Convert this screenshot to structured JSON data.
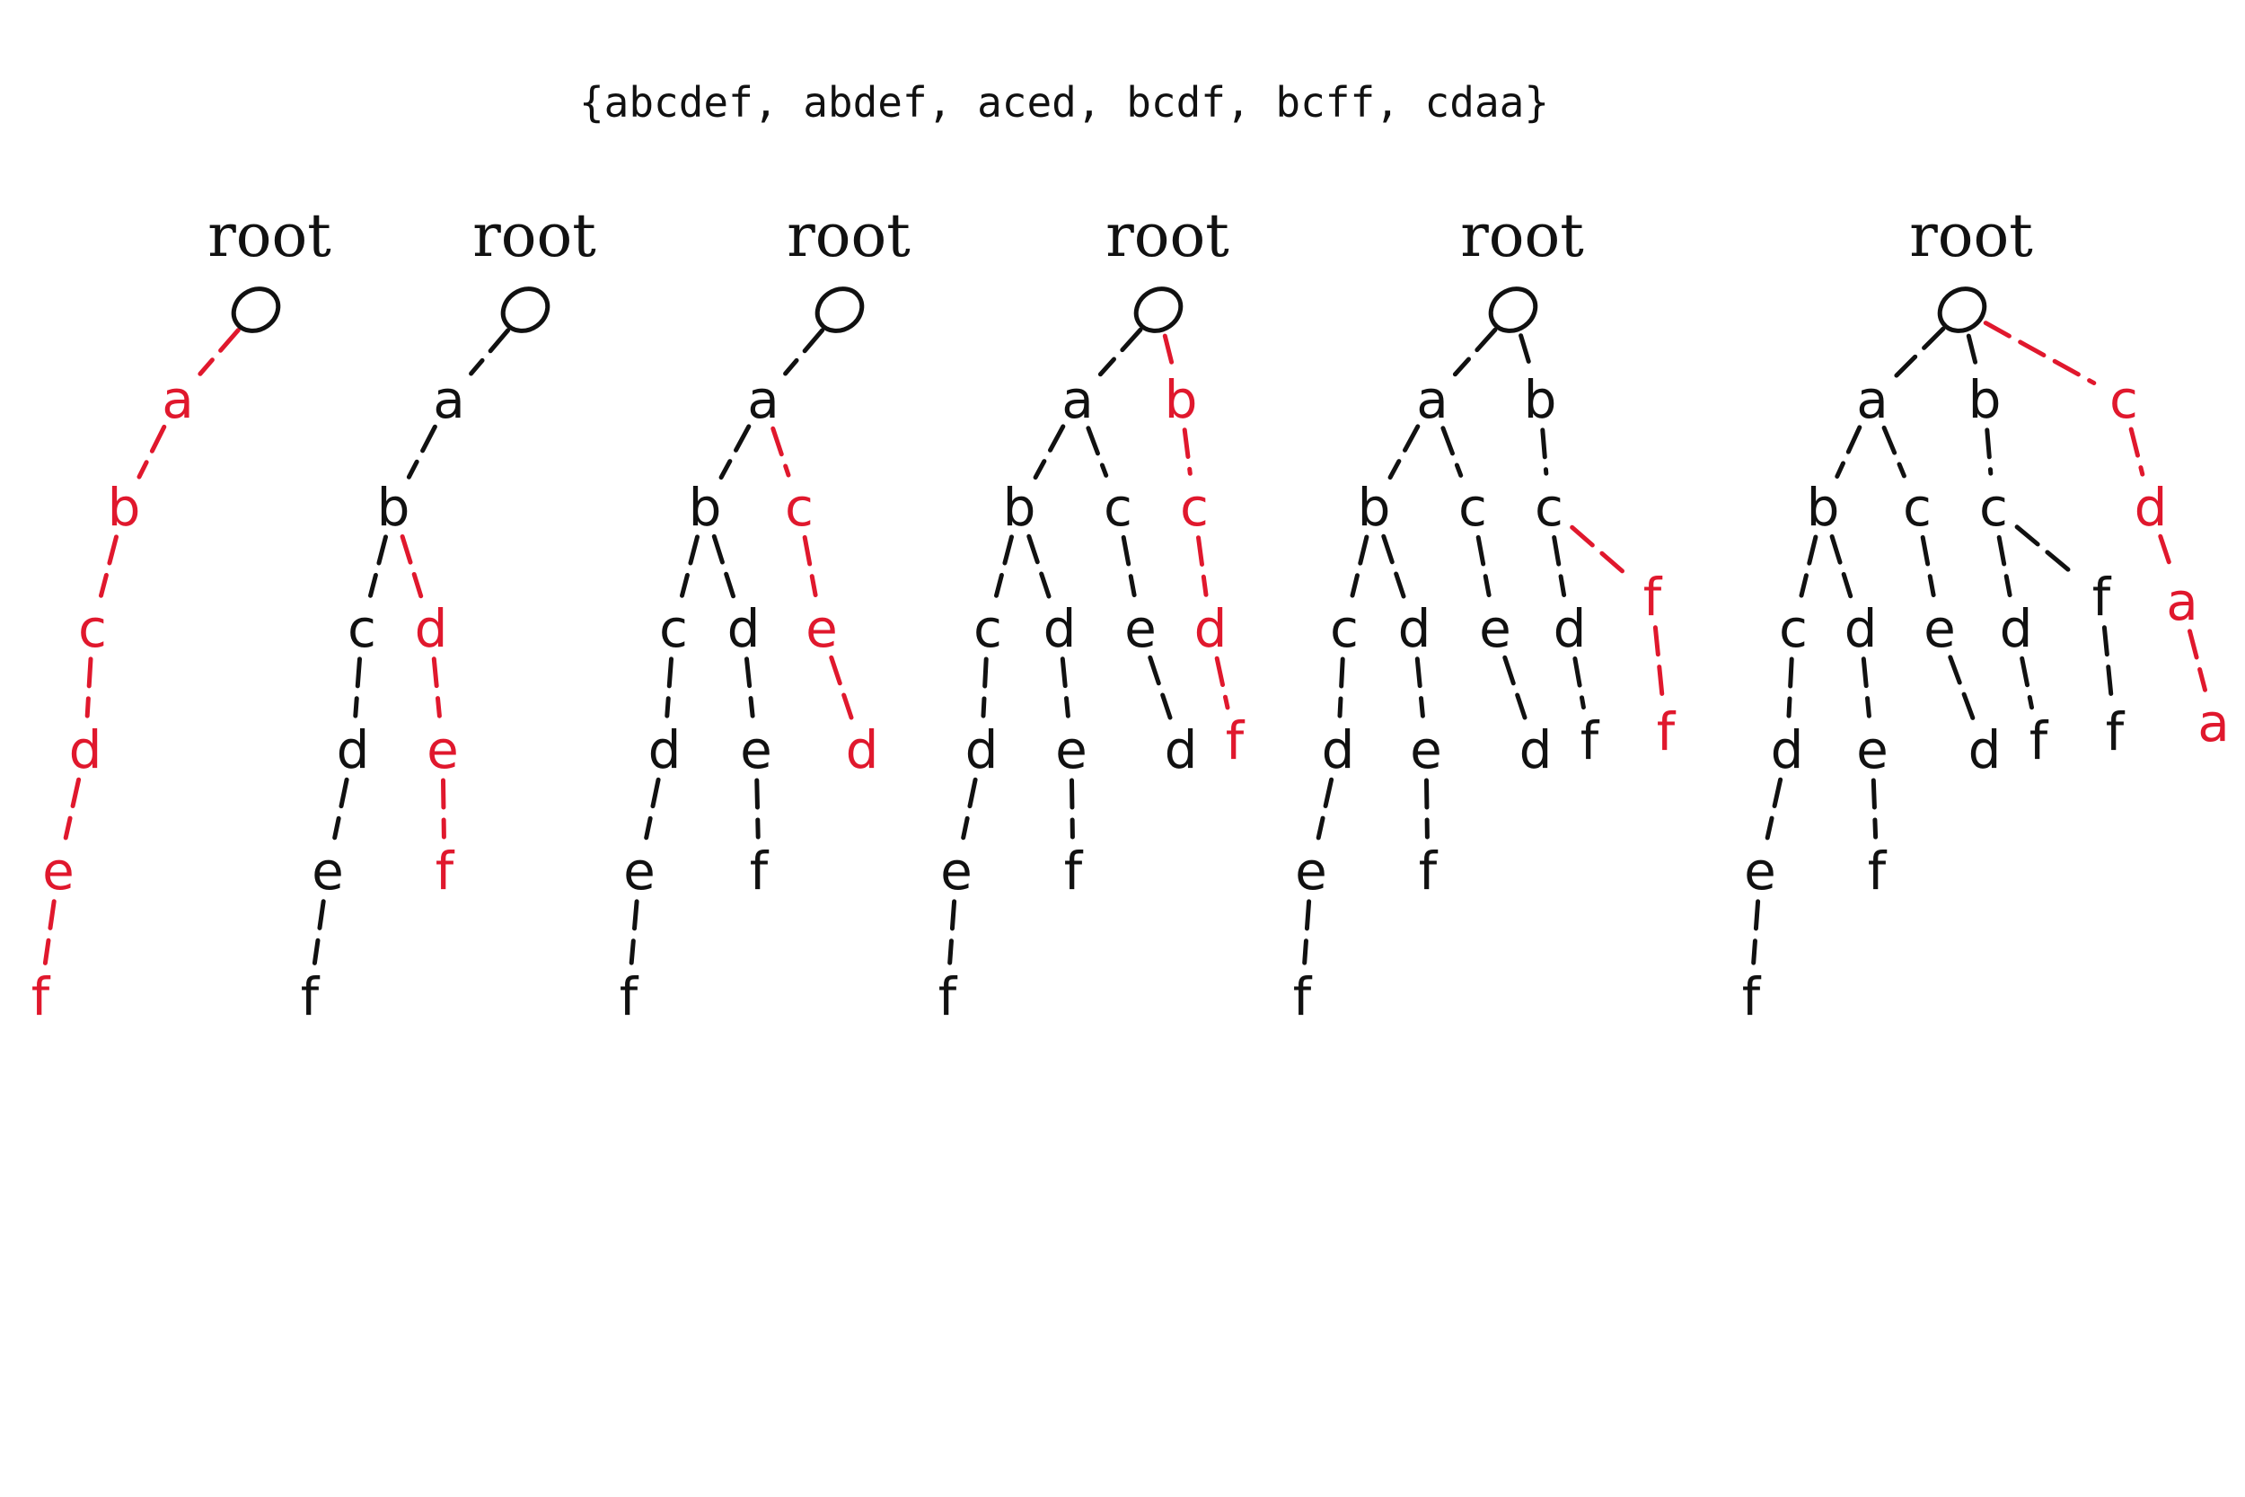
{
  "title": "{abcdef, abdef, aced, bcdf, bcff, cdaa}",
  "colors": {
    "existing": "#111111",
    "inserted": "#e0182d",
    "background": "#ffffff"
  },
  "panels": [
    {
      "root_label": "root",
      "nodes": [
        {
          "id": "n1",
          "parent": "root",
          "label": "a",
          "new": true
        },
        {
          "id": "n2",
          "parent": "n1",
          "label": "b",
          "new": true
        },
        {
          "id": "n3",
          "parent": "n2",
          "label": "c",
          "new": true
        },
        {
          "id": "n4",
          "parent": "n3",
          "label": "d",
          "new": true
        },
        {
          "id": "n5",
          "parent": "n4",
          "label": "e",
          "new": true
        },
        {
          "id": "n6",
          "parent": "n5",
          "label": "f",
          "new": true
        }
      ]
    },
    {
      "root_label": "root",
      "nodes": [
        {
          "id": "n1",
          "parent": "root",
          "label": "a",
          "new": false
        },
        {
          "id": "n2",
          "parent": "n1",
          "label": "b",
          "new": false
        },
        {
          "id": "n3",
          "parent": "n2",
          "label": "c",
          "new": false
        },
        {
          "id": "n4",
          "parent": "n3",
          "label": "d",
          "new": false
        },
        {
          "id": "n5",
          "parent": "n4",
          "label": "e",
          "new": false
        },
        {
          "id": "n6",
          "parent": "n5",
          "label": "f",
          "new": false
        },
        {
          "id": "n7",
          "parent": "n2",
          "label": "d",
          "new": true
        },
        {
          "id": "n8",
          "parent": "n7",
          "label": "e",
          "new": true
        },
        {
          "id": "n9",
          "parent": "n8",
          "label": "f",
          "new": true
        }
      ]
    },
    {
      "root_label": "root",
      "nodes": [
        {
          "id": "n1",
          "parent": "root",
          "label": "a",
          "new": false
        },
        {
          "id": "n2",
          "parent": "n1",
          "label": "b",
          "new": false
        },
        {
          "id": "n3",
          "parent": "n2",
          "label": "c",
          "new": false
        },
        {
          "id": "n4",
          "parent": "n3",
          "label": "d",
          "new": false
        },
        {
          "id": "n5",
          "parent": "n4",
          "label": "e",
          "new": false
        },
        {
          "id": "n6",
          "parent": "n5",
          "label": "f",
          "new": false
        },
        {
          "id": "n7",
          "parent": "n2",
          "label": "d",
          "new": false
        },
        {
          "id": "n8",
          "parent": "n7",
          "label": "e",
          "new": false
        },
        {
          "id": "n9",
          "parent": "n8",
          "label": "f",
          "new": false
        },
        {
          "id": "n10",
          "parent": "n1",
          "label": "c",
          "new": true
        },
        {
          "id": "n11",
          "parent": "n10",
          "label": "e",
          "new": true
        },
        {
          "id": "n12",
          "parent": "n11",
          "label": "d",
          "new": true
        }
      ]
    },
    {
      "root_label": "root",
      "nodes": [
        {
          "id": "n1",
          "parent": "root",
          "label": "a",
          "new": false
        },
        {
          "id": "n2",
          "parent": "n1",
          "label": "b",
          "new": false
        },
        {
          "id": "n3",
          "parent": "n2",
          "label": "c",
          "new": false
        },
        {
          "id": "n4",
          "parent": "n3",
          "label": "d",
          "new": false
        },
        {
          "id": "n5",
          "parent": "n4",
          "label": "e",
          "new": false
        },
        {
          "id": "n6",
          "parent": "n5",
          "label": "f",
          "new": false
        },
        {
          "id": "n7",
          "parent": "n2",
          "label": "d",
          "new": false
        },
        {
          "id": "n8",
          "parent": "n7",
          "label": "e",
          "new": false
        },
        {
          "id": "n9",
          "parent": "n8",
          "label": "f",
          "new": false
        },
        {
          "id": "n10",
          "parent": "n1",
          "label": "c",
          "new": false
        },
        {
          "id": "n11",
          "parent": "n10",
          "label": "e",
          "new": false
        },
        {
          "id": "n12",
          "parent": "n11",
          "label": "d",
          "new": false
        },
        {
          "id": "n13",
          "parent": "root",
          "label": "b",
          "new": true
        },
        {
          "id": "n14",
          "parent": "n13",
          "label": "c",
          "new": true
        },
        {
          "id": "n15",
          "parent": "n14",
          "label": "d",
          "new": true
        },
        {
          "id": "n16",
          "parent": "n15",
          "label": "f",
          "new": true
        }
      ]
    },
    {
      "root_label": "root",
      "nodes": [
        {
          "id": "n1",
          "parent": "root",
          "label": "a",
          "new": false
        },
        {
          "id": "n2",
          "parent": "n1",
          "label": "b",
          "new": false
        },
        {
          "id": "n3",
          "parent": "n2",
          "label": "c",
          "new": false
        },
        {
          "id": "n4",
          "parent": "n3",
          "label": "d",
          "new": false
        },
        {
          "id": "n5",
          "parent": "n4",
          "label": "e",
          "new": false
        },
        {
          "id": "n6",
          "parent": "n5",
          "label": "f",
          "new": false
        },
        {
          "id": "n7",
          "parent": "n2",
          "label": "d",
          "new": false
        },
        {
          "id": "n8",
          "parent": "n7",
          "label": "e",
          "new": false
        },
        {
          "id": "n9",
          "parent": "n8",
          "label": "f",
          "new": false
        },
        {
          "id": "n10",
          "parent": "n1",
          "label": "c",
          "new": false
        },
        {
          "id": "n11",
          "parent": "n10",
          "label": "e",
          "new": false
        },
        {
          "id": "n12",
          "parent": "n11",
          "label": "d",
          "new": false
        },
        {
          "id": "n13",
          "parent": "root",
          "label": "b",
          "new": false
        },
        {
          "id": "n14",
          "parent": "n13",
          "label": "c",
          "new": false
        },
        {
          "id": "n15",
          "parent": "n14",
          "label": "d",
          "new": false
        },
        {
          "id": "n16",
          "parent": "n15",
          "label": "f",
          "new": false
        },
        {
          "id": "n17",
          "parent": "n14",
          "label": "f",
          "new": true
        },
        {
          "id": "n18",
          "parent": "n17",
          "label": "f",
          "new": true
        }
      ]
    },
    {
      "root_label": "root",
      "nodes": [
        {
          "id": "n1",
          "parent": "root",
          "label": "a",
          "new": false
        },
        {
          "id": "n2",
          "parent": "n1",
          "label": "b",
          "new": false
        },
        {
          "id": "n3",
          "parent": "n2",
          "label": "c",
          "new": false
        },
        {
          "id": "n4",
          "parent": "n3",
          "label": "d",
          "new": false
        },
        {
          "id": "n5",
          "parent": "n4",
          "label": "e",
          "new": false
        },
        {
          "id": "n6",
          "parent": "n5",
          "label": "f",
          "new": false
        },
        {
          "id": "n7",
          "parent": "n2",
          "label": "d",
          "new": false
        },
        {
          "id": "n8",
          "parent": "n7",
          "label": "e",
          "new": false
        },
        {
          "id": "n9",
          "parent": "n8",
          "label": "f",
          "new": false
        },
        {
          "id": "n10",
          "parent": "n1",
          "label": "c",
          "new": false
        },
        {
          "id": "n11",
          "parent": "n10",
          "label": "e",
          "new": false
        },
        {
          "id": "n12",
          "parent": "n11",
          "label": "d",
          "new": false
        },
        {
          "id": "n13",
          "parent": "root",
          "label": "b",
          "new": false
        },
        {
          "id": "n14",
          "parent": "n13",
          "label": "c",
          "new": false
        },
        {
          "id": "n15",
          "parent": "n14",
          "label": "d",
          "new": false
        },
        {
          "id": "n16",
          "parent": "n15",
          "label": "f",
          "new": false
        },
        {
          "id": "n17",
          "parent": "n14",
          "label": "f",
          "new": false
        },
        {
          "id": "n18",
          "parent": "n17",
          "label": "f",
          "new": false
        },
        {
          "id": "n19",
          "parent": "root",
          "label": "c",
          "new": true
        },
        {
          "id": "n20",
          "parent": "n19",
          "label": "d",
          "new": true
        },
        {
          "id": "n21",
          "parent": "n20",
          "label": "a",
          "new": true
        },
        {
          "id": "n22",
          "parent": "n21",
          "label": "a",
          "new": true
        }
      ]
    }
  ]
}
